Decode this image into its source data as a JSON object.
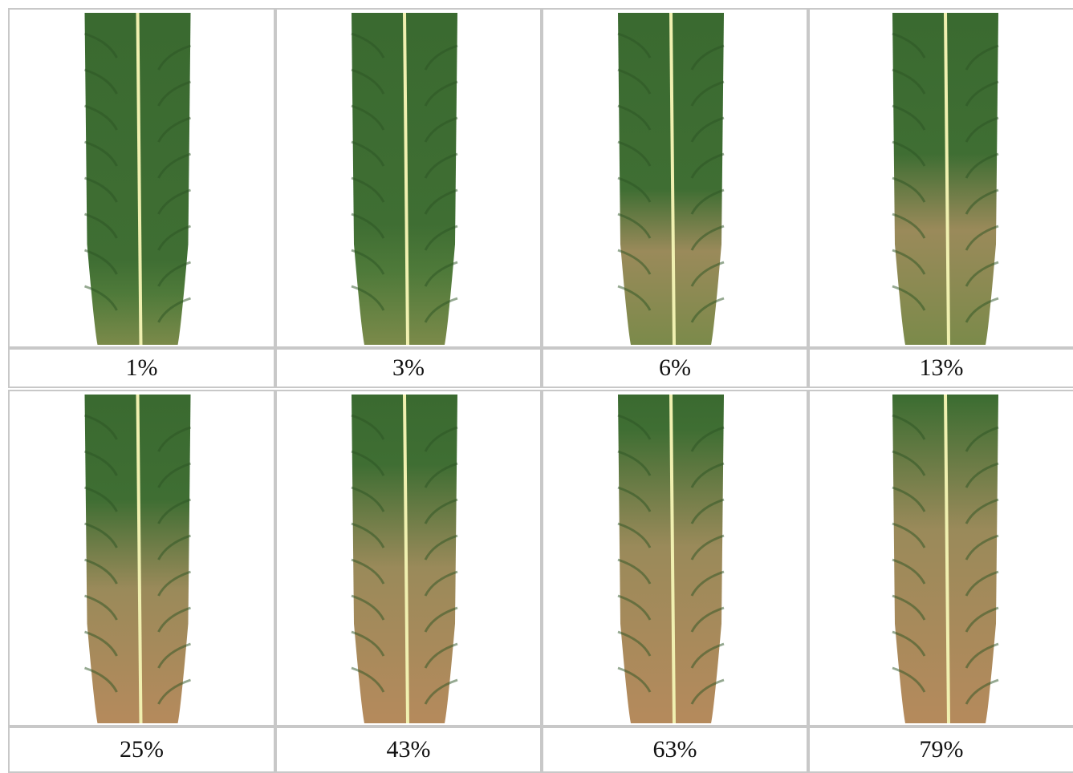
{
  "panels": [
    {
      "label": "1%"
    },
    {
      "label": "3%"
    },
    {
      "label": "6%"
    },
    {
      "label": "13%"
    },
    {
      "label": "25%"
    },
    {
      "label": "43%"
    },
    {
      "label": "63%"
    },
    {
      "label": "79%"
    }
  ]
}
